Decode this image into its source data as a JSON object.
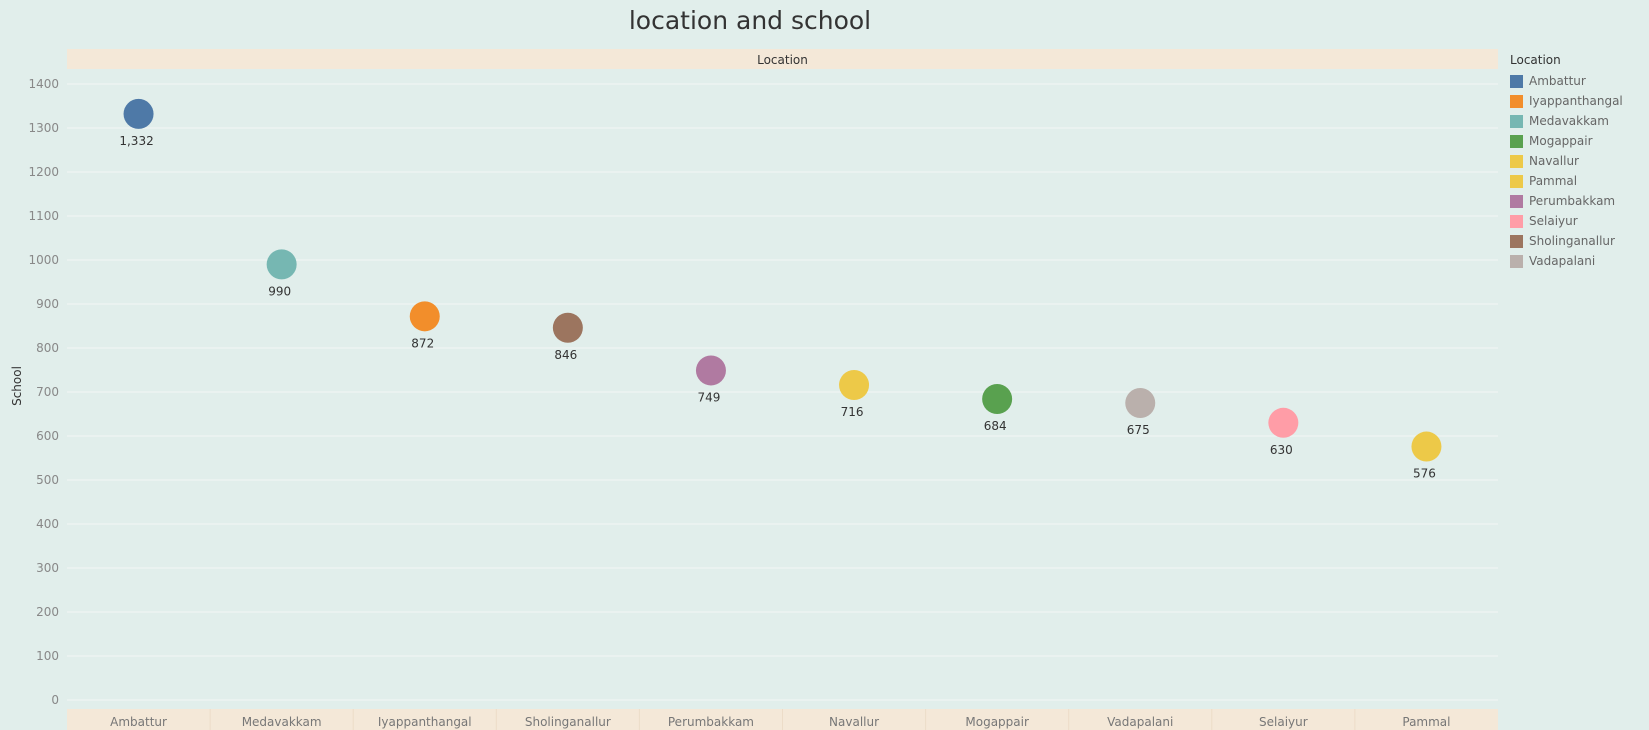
{
  "colors": {
    "background": "#e1eeeb",
    "header_band": "#f4e8d8",
    "gridline": "#f2f7f6"
  },
  "chart_data": {
    "type": "scatter",
    "title": "location and school",
    "header": "Location",
    "ylabel": "School",
    "xlabel": "",
    "ylim": [
      0,
      1400
    ],
    "yticks": [
      0,
      100,
      200,
      300,
      400,
      500,
      600,
      700,
      800,
      900,
      1000,
      1100,
      1200,
      1300,
      1400
    ],
    "grid": true,
    "categories": [
      "Ambattur",
      "Medavakkam",
      "Iyappanthangal",
      "Sholinganallur",
      "Perumbakkam",
      "Navallur",
      "Mogappair",
      "Vadapalani",
      "Selaiyur",
      "Pammal"
    ],
    "values": [
      1332,
      990,
      872,
      846,
      749,
      716,
      684,
      675,
      630,
      576
    ],
    "data_labels": [
      "1,332",
      "990",
      "872",
      "846",
      "749",
      "716",
      "684",
      "675",
      "630",
      "576"
    ],
    "legend": {
      "title": "Location",
      "position": "right",
      "items": [
        {
          "label": "Ambattur",
          "color": "#4e79a7"
        },
        {
          "label": "Iyappanthangal",
          "color": "#f28e2b"
        },
        {
          "label": "Medavakkam",
          "color": "#76b7b2"
        },
        {
          "label": "Mogappair",
          "color": "#59a14f"
        },
        {
          "label": "Navallur",
          "color": "#edc948"
        },
        {
          "label": "Pammal",
          "color": "#edc948"
        },
        {
          "label": "Perumbakkam",
          "color": "#b07aa1"
        },
        {
          "label": "Selaiyur",
          "color": "#ff9da7"
        },
        {
          "label": "Sholinganallur",
          "color": "#9c755f"
        },
        {
          "label": "Vadapalani",
          "color": "#bab0ac"
        }
      ]
    }
  }
}
